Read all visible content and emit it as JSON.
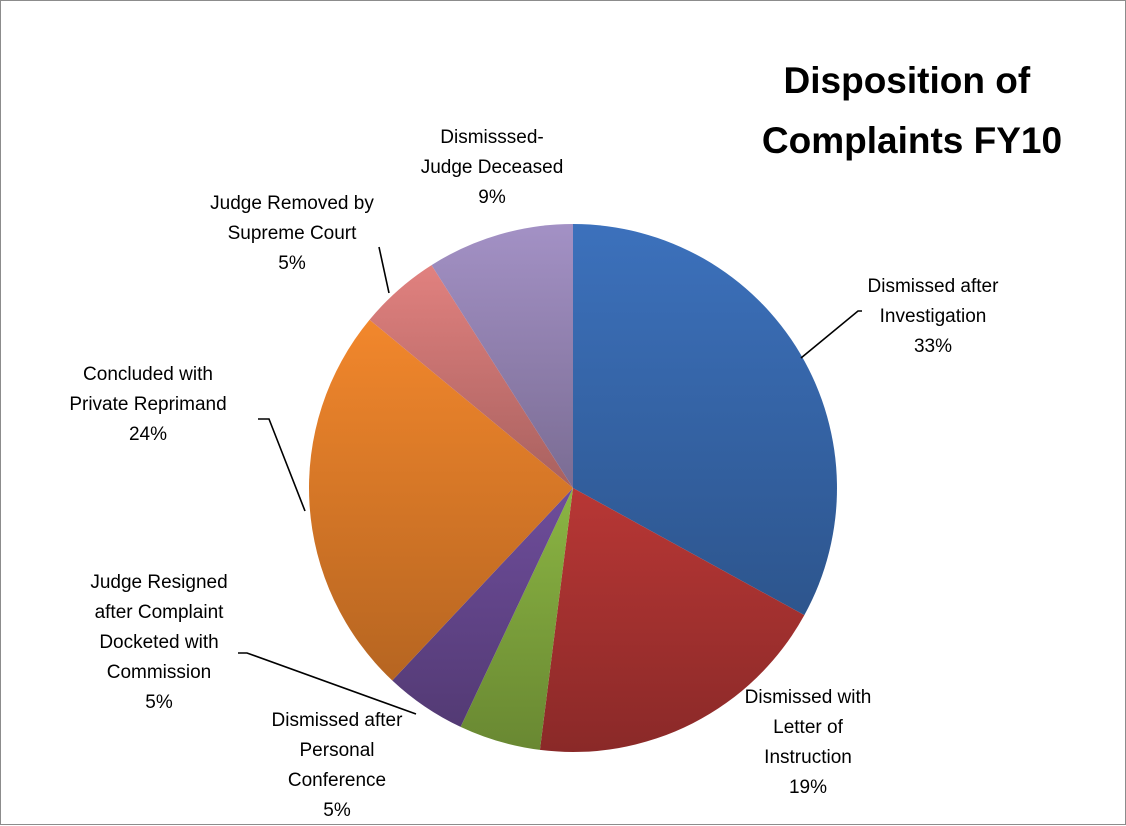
{
  "chart_data": {
    "type": "pie",
    "title_lines": [
      "Disposition of",
      "Complaints FY10"
    ],
    "slices": [
      {
        "label_lines": [
          "Dismissed after",
          "Investigation"
        ],
        "percent_label": "33%",
        "value": 33,
        "color": "#3a6db5"
      },
      {
        "label_lines": [
          "Dismissed with",
          "Letter of",
          "Instruction"
        ],
        "percent_label": "19%",
        "value": 19,
        "color": "#b13533"
      },
      {
        "label_lines": [
          "Dismissed after",
          "Personal",
          "Conference"
        ],
        "percent_label": "5%",
        "value": 5,
        "color": "#86ae40"
      },
      {
        "label_lines": [
          "Judge Resigned",
          "after Complaint",
          "Docketed with",
          "Commission"
        ],
        "percent_label": "5%",
        "value": 5,
        "color": "#6a4a95"
      },
      {
        "label_lines": [
          "Concluded with",
          "Private Reprimand"
        ],
        "percent_label": "24%",
        "value": 24,
        "color": "#e9822a"
      },
      {
        "label_lines": [
          "Judge Removed by",
          "Supreme Court"
        ],
        "percent_label": "5%",
        "value": 5,
        "color": "#d87c7a"
      },
      {
        "label_lines": [
          "Dismisssed-",
          "Judge Deceased"
        ],
        "percent_label": "9%",
        "value": 9,
        "color": "#9d8bbd"
      }
    ],
    "legend": "none"
  }
}
